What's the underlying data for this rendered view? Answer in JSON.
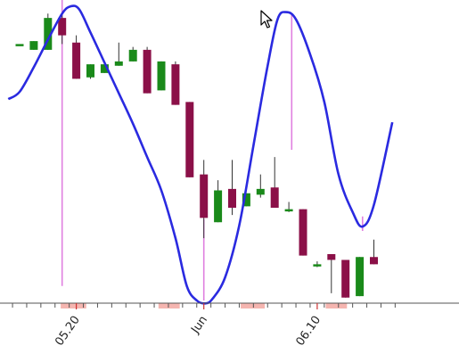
{
  "chart_data": {
    "type": "candlestick",
    "title": "",
    "xlabel": "",
    "ylabel": "",
    "x_tick_labels": [
      {
        "label": "05.20",
        "index": 4
      },
      {
        "label": "Jun",
        "index": 13
      },
      {
        "label": "06.10",
        "index": 21
      }
    ],
    "y_range": [
      0,
      100
    ],
    "grid": false,
    "legend": "none",
    "colors": {
      "up": "#1a8a1a",
      "down": "#8b1048",
      "curve": "#2a2ae0",
      "spike": "#e080e0",
      "highlight": "#f5b5b0",
      "axis": "#555555"
    },
    "candles": [
      {
        "i": 0,
        "open": 88.5,
        "close": 88.5,
        "high": 88.5,
        "low": 88.5
      },
      {
        "i": 1,
        "open": 86.5,
        "close": 89.5,
        "high": 89.5,
        "low": 86.5
      },
      {
        "i": 2,
        "open": 86.5,
        "close": 97.5,
        "high": 99.0,
        "low": 86.5
      },
      {
        "i": 3,
        "open": 97.5,
        "close": 91.5,
        "high": 99.0,
        "low": 88.5
      },
      {
        "i": 4,
        "open": 89.0,
        "close": 76.5,
        "high": 91.5,
        "low": 76.5
      },
      {
        "i": 5,
        "open": 77.0,
        "close": 81.5,
        "high": 81.5,
        "low": 76.5
      },
      {
        "i": 6,
        "open": 78.5,
        "close": 81.5,
        "high": 81.5,
        "low": 78.5
      },
      {
        "i": 7,
        "open": 81.0,
        "close": 82.5,
        "high": 89.0,
        "low": 81.0
      },
      {
        "i": 8,
        "open": 82.5,
        "close": 86.5,
        "high": 87.5,
        "low": 82.5
      },
      {
        "i": 9,
        "open": 86.5,
        "close": 71.5,
        "high": 87.5,
        "low": 71.5
      },
      {
        "i": 10,
        "open": 72.5,
        "close": 82.5,
        "high": 82.5,
        "low": 72.5
      },
      {
        "i": 11,
        "open": 81.5,
        "close": 67.5,
        "high": 82.5,
        "low": 67.5
      },
      {
        "i": 12,
        "open": 68.5,
        "close": 42.5,
        "high": 68.5,
        "low": 42.5
      },
      {
        "i": 13,
        "open": 43.5,
        "close": 28.5,
        "high": 48.5,
        "low": 21.5
      },
      {
        "i": 14,
        "open": 27.0,
        "close": 38.0,
        "high": 41.5,
        "low": 27.0
      },
      {
        "i": 15,
        "open": 38.5,
        "close": 32.0,
        "high": 48.5,
        "low": 29.5
      },
      {
        "i": 16,
        "open": 32.5,
        "close": 37.0,
        "high": 37.0,
        "low": 32.5
      },
      {
        "i": 17,
        "open": 36.5,
        "close": 38.5,
        "high": 43.5,
        "low": 35.5
      },
      {
        "i": 18,
        "open": 39.0,
        "close": 32.0,
        "high": 49.5,
        "low": 32.0
      },
      {
        "i": 19,
        "open": 31.5,
        "close": 31.5,
        "high": 34.0,
        "low": 30.5
      },
      {
        "i": 20,
        "open": 31.5,
        "close": 15.5,
        "high": 31.5,
        "low": 15.5
      },
      {
        "i": 21,
        "open": 12.5,
        "close": 12.5,
        "high": 13.5,
        "low": 11.5
      },
      {
        "i": 22,
        "open": 16.0,
        "close": 14.0,
        "high": 16.0,
        "low": 2.5
      },
      {
        "i": 23,
        "open": 14.0,
        "close": 1.0,
        "high": 14.0,
        "low": 1.0
      },
      {
        "i": 24,
        "open": 1.5,
        "close": 15.0,
        "high": 15.0,
        "low": 1.5
      },
      {
        "i": 25,
        "open": 15.0,
        "close": 12.5,
        "high": 21.0,
        "low": 12.5
      }
    ],
    "curve": [
      {
        "x": -0.8,
        "y": 69.5
      },
      {
        "x": 0.0,
        "y": 72.0
      },
      {
        "x": 1.0,
        "y": 80.5
      },
      {
        "x": 2.0,
        "y": 90.0
      },
      {
        "x": 3.0,
        "y": 99.0
      },
      {
        "x": 3.6,
        "y": 101.5
      },
      {
        "x": 4.2,
        "y": 100.5
      },
      {
        "x": 5.0,
        "y": 92.5
      },
      {
        "x": 6.0,
        "y": 82.0
      },
      {
        "x": 7.0,
        "y": 71.5
      },
      {
        "x": 8.0,
        "y": 61.0
      },
      {
        "x": 9.0,
        "y": 49.5
      },
      {
        "x": 10.0,
        "y": 38.0
      },
      {
        "x": 11.0,
        "y": 21.5
      },
      {
        "x": 11.8,
        "y": 5.0
      },
      {
        "x": 12.5,
        "y": 0.0
      },
      {
        "x": 13.1,
        "y": -1.0
      },
      {
        "x": 13.6,
        "y": 0.5
      },
      {
        "x": 14.5,
        "y": 8.0
      },
      {
        "x": 15.5,
        "y": 26.0
      },
      {
        "x": 16.5,
        "y": 53.5
      },
      {
        "x": 17.5,
        "y": 81.0
      },
      {
        "x": 18.2,
        "y": 97.0
      },
      {
        "x": 18.8,
        "y": 99.5
      },
      {
        "x": 19.5,
        "y": 97.0
      },
      {
        "x": 20.5,
        "y": 85.0
      },
      {
        "x": 21.5,
        "y": 68.5
      },
      {
        "x": 22.5,
        "y": 43.5
      },
      {
        "x": 23.5,
        "y": 30.5
      },
      {
        "x": 24.2,
        "y": 25.5
      },
      {
        "x": 25.0,
        "y": 33.0
      },
      {
        "x": 26.3,
        "y": 61.5
      }
    ],
    "spikes": [
      {
        "x": 3.0,
        "from": 5.0,
        "to": 104.0
      },
      {
        "x": 13.0,
        "from": 0.0,
        "to": 28.0
      },
      {
        "x": 19.2,
        "from": 52.0,
        "to": 99.0
      },
      {
        "x": 24.2,
        "from": 24.0,
        "to": 29.0
      }
    ],
    "highlights": [
      {
        "from": 2.9,
        "to": 4.7
      },
      {
        "from": 9.8,
        "to": 11.3
      },
      {
        "from": 15.6,
        "to": 17.3
      },
      {
        "from": 21.6,
        "to": 23.1
      }
    ]
  }
}
